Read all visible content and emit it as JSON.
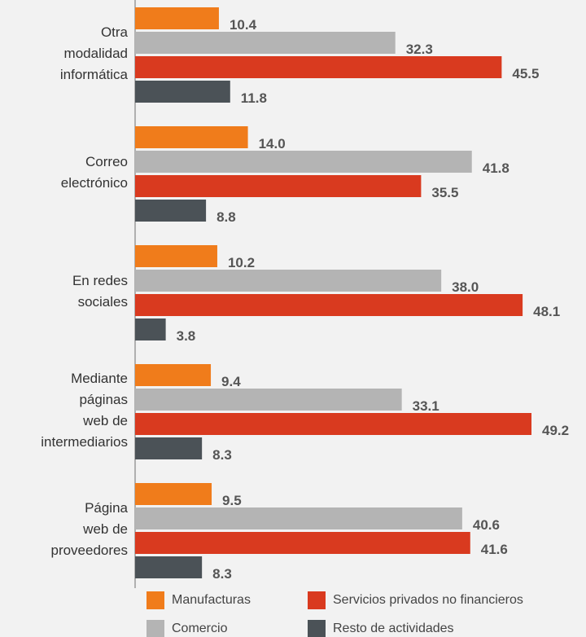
{
  "chart_data": {
    "type": "hbar",
    "categories": [
      "Otra\nmodalidad\ninformática",
      "Correo\nelectrónico",
      "En redes\nsociales",
      "Mediante\npáginas\nweb de\nintermediarios",
      "Página\nweb de\nproveedores"
    ],
    "series": [
      {
        "name": "Manufacturas",
        "color": "#f07c1b",
        "values": [
          10.4,
          14.0,
          10.2,
          9.4,
          9.5
        ],
        "value_labels": [
          "10.4",
          "14.0",
          "10.2",
          "9.4",
          "9.5"
        ]
      },
      {
        "name": "Comercio",
        "color": "#b4b4b4",
        "values": [
          32.3,
          41.8,
          38.0,
          33.1,
          40.6
        ],
        "value_labels": [
          "32.3",
          "41.8",
          "38.0",
          "33.1",
          "40.6"
        ]
      },
      {
        "name": "Servicios privados no financieros",
        "color": "#d93a1f",
        "values": [
          45.5,
          35.5,
          48.1,
          49.2,
          41.6
        ],
        "value_labels": [
          "45.5",
          "35.5",
          "48.1",
          "49.2",
          "41.6"
        ]
      },
      {
        "name": "Resto de actividades",
        "color": "#4b5257",
        "values": [
          11.8,
          8.8,
          3.8,
          8.3,
          8.3
        ],
        "value_labels": [
          "11.8",
          "8.8",
          "3.8",
          "8.3",
          "8.3"
        ]
      }
    ]
  }
}
